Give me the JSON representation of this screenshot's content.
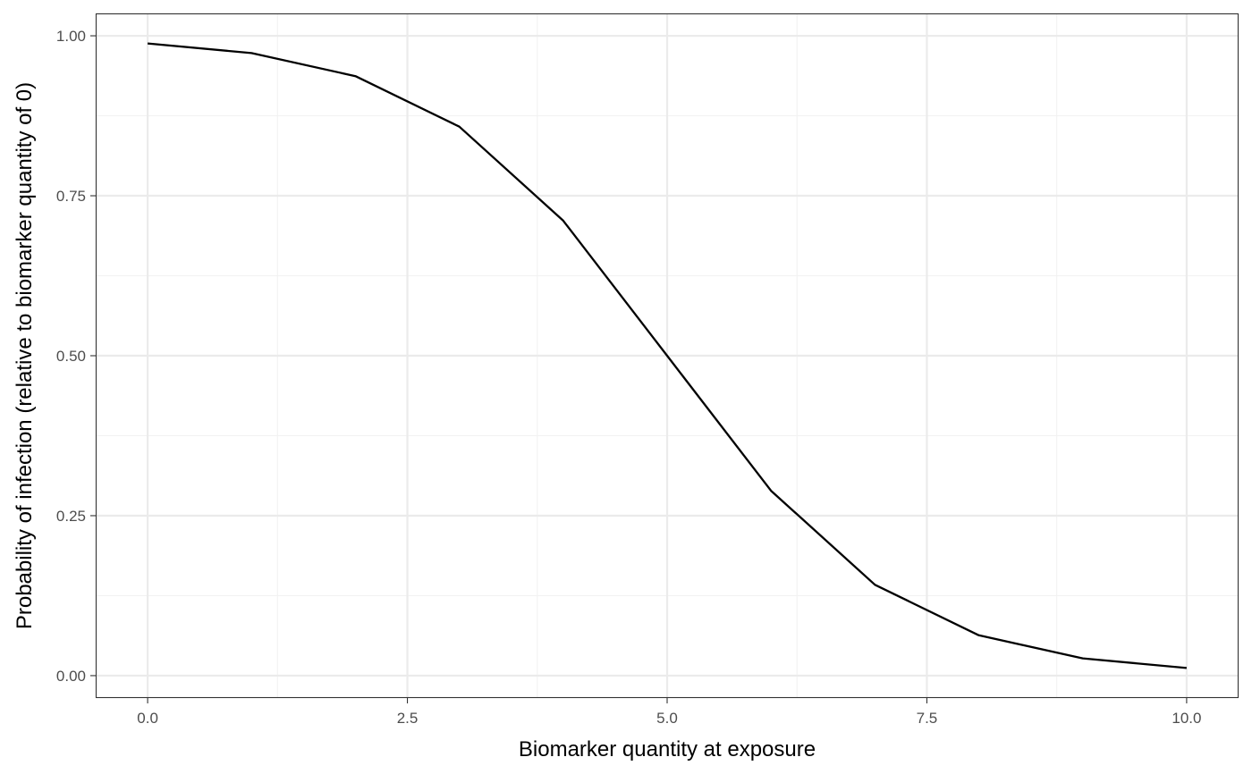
{
  "chart_data": {
    "type": "line",
    "title": "",
    "xlabel": "Biomarker quantity at exposure",
    "ylabel": "Probability of infection (relative to biomarker quantity of 0)",
    "xlim": [
      -0.5,
      10.5
    ],
    "ylim": [
      -0.035,
      1.035
    ],
    "x_ticks": [
      0,
      2.5,
      5,
      7.5,
      10
    ],
    "x_tick_labels": [
      "0.0",
      "2.5",
      "5.0",
      "7.5",
      "10.0"
    ],
    "y_ticks": [
      0,
      0.25,
      0.5,
      0.75,
      1
    ],
    "y_tick_labels": [
      "0.00",
      "0.25",
      "0.50",
      "0.75",
      "1.00"
    ],
    "x_minor_ticks": [
      1.25,
      3.75,
      6.25,
      8.75
    ],
    "y_minor_ticks": [
      0.125,
      0.375,
      0.625,
      0.875
    ],
    "grid": true,
    "legend": "none",
    "series": [
      {
        "color": "#000000",
        "x": [
          0,
          1,
          2,
          3,
          4,
          5,
          6,
          7,
          8,
          9,
          10
        ],
        "y": [
          0.988,
          0.973,
          0.937,
          0.858,
          0.711,
          0.5,
          0.289,
          0.142,
          0.063,
          0.027,
          0.012
        ]
      }
    ]
  }
}
